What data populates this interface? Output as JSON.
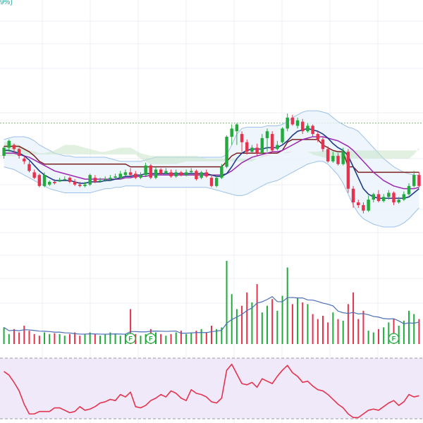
{
  "header": {
    "change_text": "9%)"
  },
  "colors": {
    "up": "#22ab3c",
    "down": "#e5334e",
    "ma_fast": "#1f3c88",
    "ma_mid": "#9b2ab0",
    "ma_slow": "#7a1f1f",
    "band_line": "#9cc0ea",
    "band_fill": "#eaf3fc",
    "cloud_green": "#c9e4c9",
    "cloud_red": "#f7c9cf",
    "volume_avg": "#4a6fb5",
    "rsi_line": "#e5334e",
    "rsi_fill": "#efe9fa",
    "grid": "#eceff4",
    "ref_line": "#7ec97e",
    "flag": "#22ab3c"
  },
  "chart_data": {
    "type": "candlestick",
    "title": "",
    "xlabel": "",
    "ylabel": "",
    "grid": true,
    "price_pane": {
      "ylim": [
        0,
        100
      ],
      "reference_level": 76,
      "candles": [
        [
          52,
          58,
          50,
          59,
          49
        ],
        [
          58,
          63,
          55,
          64,
          54
        ],
        [
          60,
          57,
          54,
          61,
          53
        ],
        [
          57,
          52,
          50,
          58,
          49
        ],
        [
          50,
          48,
          46,
          52,
          45
        ],
        [
          46,
          41,
          40,
          48,
          38
        ],
        [
          40,
          36,
          35,
          42,
          34
        ],
        [
          38,
          30,
          29,
          39,
          26
        ],
        [
          30,
          38,
          29,
          40,
          28
        ],
        [
          31,
          33,
          30,
          34,
          29
        ],
        [
          33,
          32,
          31,
          35,
          30
        ],
        [
          34,
          34,
          33,
          36,
          32
        ],
        [
          35,
          35,
          34,
          37,
          33
        ],
        [
          36,
          33,
          32,
          37,
          31
        ],
        [
          33,
          31,
          30,
          35,
          29
        ],
        [
          31,
          30,
          29,
          33,
          27
        ],
        [
          30,
          31,
          29,
          33,
          28
        ],
        [
          31,
          38,
          30,
          39,
          29
        ],
        [
          36,
          33,
          32,
          38,
          30
        ],
        [
          34,
          34,
          33,
          36,
          32
        ],
        [
          35,
          35,
          33,
          37,
          32
        ],
        [
          35,
          36,
          34,
          38,
          33
        ],
        [
          36,
          37,
          35,
          39,
          34
        ],
        [
          36,
          39,
          35,
          41,
          34
        ],
        [
          38,
          40,
          37,
          42,
          36
        ],
        [
          40,
          38,
          37,
          43,
          36
        ],
        [
          39,
          36,
          35,
          41,
          34
        ],
        [
          36,
          38,
          35,
          40,
          34
        ],
        [
          38,
          45,
          37,
          47,
          36
        ],
        [
          45,
          36,
          35,
          46,
          34
        ],
        [
          36,
          42,
          35,
          44,
          34
        ],
        [
          42,
          39,
          38,
          43,
          37
        ],
        [
          39,
          41,
          38,
          43,
          37
        ],
        [
          40,
          37,
          36,
          42,
          35
        ],
        [
          37,
          40,
          36,
          42,
          35
        ],
        [
          40,
          38,
          37,
          41,
          36
        ],
        [
          38,
          40,
          37,
          42,
          36
        ],
        [
          40,
          41,
          39,
          43,
          38
        ],
        [
          41,
          35,
          34,
          42,
          33
        ],
        [
          36,
          40,
          35,
          41,
          34
        ],
        [
          40,
          37,
          36,
          42,
          35
        ],
        [
          36,
          30,
          29,
          38,
          27
        ],
        [
          30,
          36,
          29,
          38,
          28
        ],
        [
          36,
          44,
          35,
          46,
          34
        ],
        [
          44,
          66,
          43,
          67,
          42
        ],
        [
          66,
          72,
          60,
          75,
          58
        ],
        [
          70,
          75,
          60,
          76,
          58
        ],
        [
          68,
          62,
          55,
          70,
          53
        ],
        [
          62,
          55,
          53,
          64,
          52
        ],
        [
          55,
          58,
          54,
          60,
          52
        ],
        [
          58,
          54,
          52,
          61,
          51
        ],
        [
          54,
          65,
          53,
          68,
          52
        ],
        [
          65,
          70,
          55,
          72,
          54
        ],
        [
          68,
          56,
          55,
          70,
          53
        ],
        [
          57,
          60,
          56,
          63,
          55
        ],
        [
          62,
          72,
          61,
          73,
          60
        ],
        [
          72,
          80,
          70,
          83,
          69
        ],
        [
          80,
          75,
          74,
          82,
          72
        ],
        [
          74,
          78,
          72,
          80,
          71
        ],
        [
          77,
          70,
          68,
          79,
          67
        ],
        [
          70,
          74,
          69,
          76,
          67
        ],
        [
          74,
          68,
          66,
          75,
          65
        ],
        [
          68,
          64,
          62,
          70,
          60
        ],
        [
          64,
          57,
          55,
          66,
          54
        ],
        [
          57,
          48,
          47,
          59,
          46
        ],
        [
          48,
          52,
          47,
          55,
          46
        ],
        [
          52,
          46,
          45,
          54,
          44
        ],
        [
          46,
          55,
          45,
          58,
          44
        ],
        [
          55,
          28,
          25,
          57,
          20
        ],
        [
          28,
          18,
          14,
          30,
          12
        ],
        [
          18,
          16,
          14,
          20,
          8
        ],
        [
          16,
          12,
          10,
          18,
          4
        ],
        [
          12,
          20,
          11,
          23,
          10
        ],
        [
          20,
          24,
          18,
          25,
          16
        ],
        [
          24,
          19,
          18,
          27,
          16
        ],
        [
          19,
          22,
          18,
          24,
          16
        ],
        [
          22,
          25,
          20,
          27,
          18
        ],
        [
          25,
          18,
          16,
          26,
          14
        ],
        [
          18,
          20,
          17,
          22,
          15
        ],
        [
          20,
          24,
          19,
          26,
          17
        ],
        [
          24,
          30,
          23,
          32,
          22
        ],
        [
          30,
          38,
          29,
          41,
          28
        ],
        [
          38,
          30,
          29,
          40,
          27
        ]
      ],
      "ma_fast": [
        56,
        56,
        55,
        54,
        52,
        49,
        45,
        41,
        38,
        36,
        34,
        34,
        34,
        34,
        33,
        32,
        32,
        33,
        33,
        33,
        34,
        34,
        35,
        36,
        37,
        37,
        38,
        38,
        39,
        39,
        39,
        39,
        39,
        39,
        39,
        39,
        39,
        39,
        39,
        39,
        39,
        38,
        37,
        37,
        39,
        44,
        50,
        54,
        56,
        57,
        57,
        57,
        58,
        58,
        58,
        60,
        63,
        67,
        70,
        71,
        72,
        71,
        70,
        68,
        65,
        61,
        58,
        56,
        52,
        44,
        36,
        28,
        24,
        22,
        21,
        21,
        21,
        21,
        21,
        21,
        22,
        25,
        28
      ],
      "ma_mid": [
        54,
        54,
        54,
        53,
        52,
        51,
        49,
        47,
        45,
        43,
        41,
        40,
        39,
        38,
        37,
        36,
        35,
        35,
        35,
        35,
        35,
        35,
        35,
        35,
        36,
        36,
        37,
        37,
        37,
        38,
        38,
        38,
        38,
        38,
        38,
        38,
        38,
        38,
        38,
        38,
        38,
        38,
        38,
        38,
        39,
        41,
        44,
        47,
        49,
        51,
        52,
        53,
        54,
        55,
        55,
        56,
        58,
        60,
        62,
        64,
        65,
        66,
        66,
        66,
        65,
        64,
        63,
        61,
        59,
        56,
        52,
        48,
        44,
        40,
        37,
        34,
        32,
        30,
        29,
        28,
        28,
        28,
        29
      ],
      "ma_slow": [
        59,
        59,
        59,
        59,
        57,
        55,
        52,
        48,
        46,
        46,
        46,
        46,
        46,
        46,
        46,
        46,
        46,
        46,
        46,
        46,
        46,
        46,
        46,
        46,
        46,
        44,
        44,
        44,
        44,
        44,
        44,
        44,
        44,
        44,
        44,
        44,
        44,
        44,
        44,
        44,
        44,
        44,
        44,
        44,
        48,
        52,
        54,
        54,
        54,
        54,
        54,
        54,
        54,
        54,
        54,
        56,
        62,
        64,
        64,
        64,
        64,
        64,
        64,
        60,
        58,
        56,
        55,
        55,
        44,
        44,
        40,
        40,
        40,
        40,
        40,
        40,
        40,
        40,
        40,
        40,
        40,
        40,
        40
      ],
      "band_upper": [
        64,
        65,
        66,
        66,
        66,
        65,
        63,
        60,
        58,
        56,
        54,
        53,
        52,
        52,
        51,
        51,
        51,
        51,
        51,
        51,
        51,
        50,
        49,
        48,
        48,
        48,
        48,
        48,
        49,
        50,
        51,
        51,
        51,
        51,
        51,
        51,
        51,
        51,
        51,
        51,
        51,
        51,
        51,
        51,
        53,
        60,
        68,
        72,
        73,
        73,
        73,
        73,
        74,
        74,
        74,
        75,
        77,
        80,
        82,
        84,
        85,
        85,
        85,
        84,
        83,
        80,
        77,
        75,
        73,
        72,
        70,
        66,
        62,
        58,
        54,
        50,
        47,
        44,
        42,
        40,
        39,
        38,
        38
      ],
      "band_lower": [
        44,
        43,
        42,
        40,
        38,
        36,
        34,
        32,
        30,
        28,
        27,
        26,
        25,
        25,
        25,
        25,
        25,
        25,
        26,
        27,
        28,
        28,
        29,
        29,
        30,
        30,
        30,
        30,
        29,
        29,
        29,
        29,
        29,
        29,
        29,
        29,
        29,
        29,
        29,
        29,
        29,
        28,
        27,
        26,
        25,
        24,
        23,
        23,
        24,
        26,
        28,
        30,
        32,
        33,
        34,
        36,
        38,
        40,
        42,
        44,
        46,
        47,
        48,
        48,
        46,
        42,
        38,
        32,
        24,
        16,
        10,
        6,
        4,
        2,
        1,
        0,
        0,
        0,
        1,
        3,
        6,
        10,
        14
      ],
      "cloud_upper": [
        62,
        62,
        61,
        60,
        58,
        56,
        55,
        54,
        54,
        55,
        56,
        58,
        60,
        60,
        60,
        59,
        58,
        57,
        56,
        55,
        55,
        56,
        57,
        58,
        58,
        58,
        56,
        54,
        53,
        52,
        52,
        52,
        52,
        52,
        52,
        52,
        52,
        52,
        52,
        51,
        50,
        50,
        50,
        50,
        50,
        50,
        50,
        50,
        50,
        50,
        50,
        51,
        52,
        53,
        53,
        54,
        54,
        55,
        55,
        55,
        55,
        55,
        55,
        56,
        56,
        56,
        56,
        56,
        56,
        56,
        56,
        56,
        56,
        56,
        56,
        56,
        56,
        56,
        56,
        56,
        56,
        56,
        56
      ],
      "cloud_lower": [
        52,
        52,
        52,
        53,
        53,
        53,
        53,
        53,
        53,
        53,
        53,
        53,
        53,
        53,
        53,
        53,
        53,
        53,
        53,
        53,
        53,
        53,
        53,
        53,
        53,
        53,
        53,
        50,
        48,
        46,
        46,
        46,
        46,
        46,
        46,
        47,
        48,
        48,
        48,
        48,
        48,
        48,
        48,
        48,
        48,
        48,
        48,
        48,
        48,
        48,
        50,
        52,
        53,
        53,
        53,
        54,
        55,
        55,
        55,
        55,
        55,
        53,
        52,
        51,
        50,
        50,
        50,
        50,
        50,
        50,
        50,
        50,
        50,
        50,
        50,
        50,
        50,
        50,
        50,
        50,
        50,
        53,
        58
      ]
    },
    "volume_pane": {
      "ylim": [
        0,
        100
      ],
      "volumes": [
        20,
        12,
        18,
        14,
        22,
        16,
        12,
        10,
        14,
        12,
        13,
        12,
        10,
        12,
        14,
        10,
        12,
        14,
        12,
        10,
        12,
        14,
        12,
        10,
        12,
        42,
        12,
        10,
        12,
        18,
        14,
        12,
        10,
        12,
        14,
        16,
        12,
        14,
        16,
        18,
        14,
        22,
        18,
        20,
        100,
        60,
        42,
        46,
        62,
        50,
        72,
        38,
        46,
        54,
        40,
        58,
        92,
        48,
        56,
        50,
        48,
        36,
        30,
        34,
        26,
        38,
        30,
        28,
        48,
        62,
        30,
        40,
        16,
        14,
        18,
        20,
        26,
        30,
        22,
        28,
        40,
        36,
        30
      ],
      "flag_indices": [
        25,
        29,
        77
      ],
      "flag_label": "F"
    },
    "oscillator_pane": {
      "ylim": [
        0,
        100
      ],
      "rsi": [
        78,
        72,
        60,
        46,
        24,
        8,
        8,
        12,
        12,
        12,
        18,
        18,
        14,
        10,
        12,
        20,
        14,
        16,
        20,
        26,
        28,
        32,
        30,
        40,
        36,
        44,
        20,
        18,
        22,
        30,
        34,
        40,
        36,
        46,
        42,
        34,
        30,
        48,
        42,
        40,
        36,
        28,
        26,
        34,
        80,
        90,
        74,
        58,
        56,
        60,
        52,
        66,
        62,
        58,
        70,
        80,
        88,
        76,
        70,
        60,
        62,
        54,
        48,
        46,
        40,
        32,
        24,
        18,
        8,
        2,
        2,
        8,
        14,
        16,
        14,
        20,
        26,
        30,
        22,
        28,
        40,
        36,
        38
      ]
    }
  }
}
